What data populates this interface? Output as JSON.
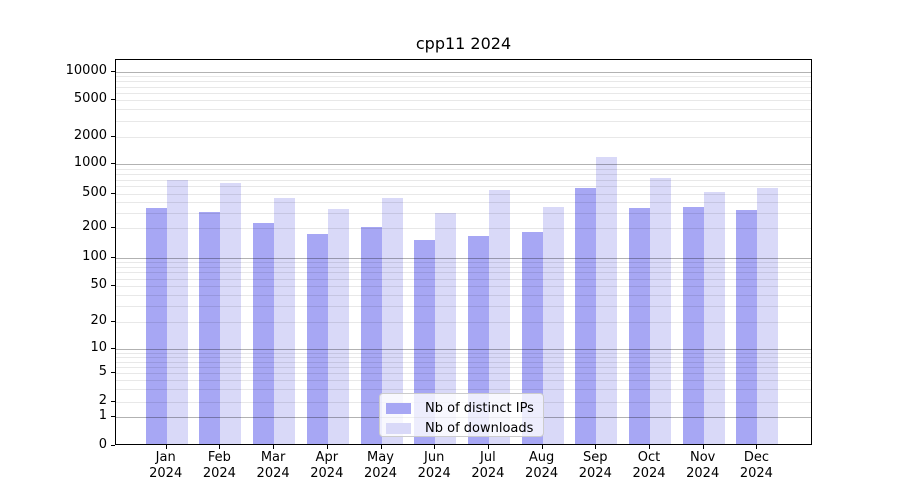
{
  "chart_data": {
    "type": "bar",
    "title": "cpp11 2024",
    "year_label": "2024",
    "categories": [
      "Jan",
      "Feb",
      "Mar",
      "Apr",
      "May",
      "Jun",
      "Jul",
      "Aug",
      "Sep",
      "Oct",
      "Nov",
      "Dec"
    ],
    "series": [
      {
        "name": "Nb of distinct IPs",
        "color": "#a7a7f4",
        "values": [
          325,
          290,
          215,
          165,
          195,
          145,
          160,
          175,
          550,
          320,
          335,
          310
        ]
      },
      {
        "name": "Nb of downloads",
        "color": "#d9d9f8",
        "values": [
          660,
          615,
          425,
          315,
          430,
          280,
          525,
          335,
          1150,
          690,
          500,
          545
        ]
      }
    ],
    "y_ticks": [
      0,
      1,
      2,
      5,
      10,
      20,
      50,
      100,
      200,
      500,
      1000,
      2000,
      5000,
      10000
    ],
    "y_scale": "symlog",
    "ylim": [
      0,
      14000
    ],
    "grid": true,
    "legend_position": "lower-center"
  }
}
